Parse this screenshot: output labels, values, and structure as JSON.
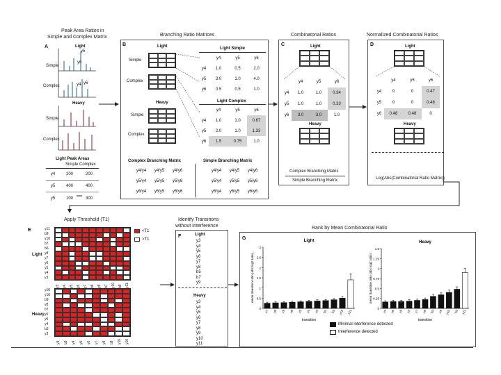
{
  "panels": {
    "A": {
      "letter": "A",
      "title_l1": "Peak Area Ratios in",
      "title_l2": "Simple and Complex Matrix",
      "light": "Light",
      "heavy": "Heavy",
      "simple": "Simple",
      "complex": "Complex",
      "peak_labels": [
        "y5",
        "y6",
        "y4",
        "y6"
      ],
      "table_title": "Light Peak Areas",
      "table_sub": "Simple Complex",
      "rows": [
        {
          "ion": "y4",
          "simple": "200",
          "complex": "200"
        },
        {
          "ion": "y5",
          "simple": "400",
          "complex": "400"
        },
        {
          "ion": "y5",
          "simple": "100",
          "complex": "300"
        }
      ]
    },
    "B": {
      "letter": "B",
      "title": "Branching Ratio Matrices",
      "light": "Light",
      "heavy": "Heavy",
      "simple": "Simple",
      "complex": "Complex",
      "light_simple": "Light Simple",
      "light_complex": "Light Complex",
      "cols": [
        "y4",
        "y5",
        "y6"
      ],
      "simple_matrix": [
        [
          "y4",
          "1.0",
          "0.5",
          "2.0"
        ],
        [
          "y5",
          "3.0",
          "1.0",
          "4.0"
        ],
        [
          "y6",
          "0.5",
          "0.5",
          "1.0"
        ]
      ],
      "complex_matrix": [
        [
          "y4",
          "1.0",
          "1.0",
          "0.67"
        ],
        [
          "y5",
          "2.0",
          "1.0",
          "1.33"
        ],
        [
          "y6",
          "1.5",
          "0.75",
          "1.0"
        ]
      ],
      "complex_branching": "Complex Branching Matrix",
      "simple_branching": "Simple Branching Matrix",
      "complex_cells": [
        [
          "y4/y4",
          "y4/y5",
          "y4/y6"
        ],
        [
          "y5/y4",
          "y5/y5",
          "y5/y6"
        ],
        [
          "y6/y4",
          "y6/y5",
          "y6/y6"
        ]
      ],
      "simple_cells": [
        [
          "y4/y4",
          "y4/y5",
          "y4/y6"
        ],
        [
          "y5/y4",
          "y5/y5",
          "y5/y6"
        ],
        [
          "y6/y4",
          "y6/y5",
          "y6/y6"
        ]
      ]
    },
    "C": {
      "letter": "C",
      "title": "Combinatorial Ratios",
      "light": "Light",
      "heavy": "Heavy",
      "cols": [
        "y4",
        "y5",
        "y6"
      ],
      "matrix": [
        [
          "y4",
          "1.0",
          "1.0",
          "0.34"
        ],
        [
          "y5",
          "1.0",
          "1.0",
          "0.33"
        ],
        [
          "y6",
          "3.0",
          "3.0",
          "1.0"
        ]
      ],
      "footer_top": "Complex Branching Matrix",
      "footer_bottom": "Simple Branching Matrix"
    },
    "D": {
      "letter": "D",
      "title": "Normalized Combinatorial Ratios",
      "light": "Light",
      "heavy": "Heavy",
      "cols": [
        "y4",
        "y5",
        "y6"
      ],
      "matrix": [
        [
          "y4",
          "0",
          "0",
          "0.47"
        ],
        [
          "y5",
          "0",
          "0",
          "0.48"
        ],
        [
          "y6",
          "0.48",
          "0.48",
          "0"
        ]
      ],
      "footer": "Log(Abs(Combinatorial Ratio Matrix))"
    },
    "E": {
      "letter": "E",
      "title": "Apply Threshold (T1)",
      "legend_on": "<T1",
      "legend_off": ">T1",
      "light": "Light",
      "heavy": "Heavy",
      "light_rows": [
        "y11",
        "b9",
        "y10",
        "b7",
        "b6",
        "y8",
        "y7",
        "y6",
        "y5",
        "y4",
        "y3"
      ],
      "heavy_rows": [
        "y10",
        "y10",
        "b9",
        "y8",
        "b7",
        "y6",
        "y5",
        "y4",
        "b3",
        "y3"
      ],
      "light_cols": [
        "y3",
        "y4",
        "y5",
        "y6",
        "y7",
        "b6",
        "y8",
        "b7",
        "y10",
        "b9",
        "y11"
      ],
      "heavy_cols": [
        "y3",
        "b3",
        "y4",
        "y5",
        "y6",
        "y7",
        "y8",
        "b9",
        "y10",
        "y10"
      ]
    },
    "F": {
      "letter": "F",
      "title_l1": "Identify Transitions",
      "title_l2": "without Interference",
      "light": "Light",
      "heavy": "Heavy",
      "light_list": [
        "y3",
        "y4",
        "y5",
        "y6",
        "y7",
        "y8",
        "b5",
        "b7",
        "y9"
      ],
      "heavy_list": [
        "y3",
        "y4",
        "y5",
        "y6",
        "y7",
        "y8",
        "y9",
        "y10",
        "y11"
      ]
    },
    "G": {
      "letter": "G",
      "title": "Rank by Mean Combinatorial Ratio",
      "legend_1": "Minimal interference detected",
      "legend_2": "Interference detected"
    }
  },
  "chart_data": [
    {
      "type": "bar",
      "title": "Light",
      "ylabel": "mean transition ratio (abs log2 ratio)",
      "xlabel": "transition",
      "ylim": [
        0,
        3.0
      ],
      "yticks": [
        0,
        0.5,
        1.0,
        1.5,
        2.0,
        2.5,
        3.0
      ],
      "categories": [
        "y7",
        "y8",
        "y9",
        "y6",
        "y5",
        "y4",
        "y3",
        "b3",
        "b5",
        "y10",
        "y11"
      ],
      "values": [
        0.25,
        0.27,
        0.28,
        0.3,
        0.32,
        0.34,
        0.36,
        0.38,
        0.42,
        0.5,
        1.4
      ],
      "errors": [
        0.05,
        0.05,
        0.04,
        0.06,
        0.05,
        0.05,
        0.06,
        0.05,
        0.06,
        0.08,
        0.3
      ],
      "interference": [
        false,
        false,
        false,
        false,
        false,
        false,
        false,
        false,
        false,
        false,
        true
      ]
    },
    {
      "type": "bar",
      "title": "Heavy",
      "ylabel": "mean transition ratio (abs log2 ratio)",
      "xlabel": "transition",
      "ylim": [
        0,
        1.5
      ],
      "yticks": [
        0,
        0.25,
        0.5,
        0.75,
        1.0,
        1.25,
        1.5
      ],
      "categories": [
        "y4",
        "y6",
        "y5",
        "y3",
        "y7",
        "y8",
        "b3",
        "y9",
        "y10",
        "b5",
        "y11"
      ],
      "values": [
        0.16,
        0.17,
        0.17,
        0.18,
        0.2,
        0.22,
        0.3,
        0.34,
        0.4,
        0.48,
        0.9
      ],
      "errors": [
        0.03,
        0.03,
        0.03,
        0.04,
        0.03,
        0.04,
        0.05,
        0.05,
        0.06,
        0.06,
        0.1
      ],
      "interference": [
        false,
        false,
        false,
        false,
        false,
        false,
        false,
        false,
        false,
        false,
        true
      ]
    }
  ]
}
